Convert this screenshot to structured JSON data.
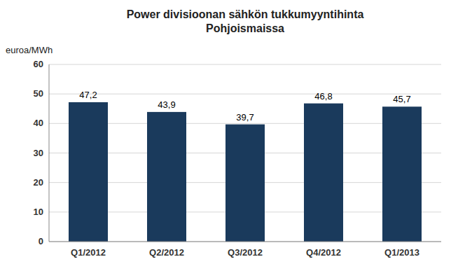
{
  "chart_data": {
    "type": "bar",
    "title": "Power divisioonan sähkön tukkumyyntihinta\nPohjoismaissa",
    "ylabel": "euroa/MWh",
    "categories": [
      "Q1/2012",
      "Q2/2012",
      "Q3/2012",
      "Q4/2012",
      "Q1/2013"
    ],
    "values": [
      47.2,
      43.9,
      39.7,
      46.8,
      45.7
    ],
    "value_labels": [
      "47,2",
      "43,9",
      "39,7",
      "46,8",
      "45,7"
    ],
    "data_labels": true,
    "color": "#1a3a5c",
    "ylim": [
      0,
      60
    ],
    "yticks": [
      0,
      10,
      20,
      30,
      40,
      50,
      60
    ],
    "grid": true
  }
}
